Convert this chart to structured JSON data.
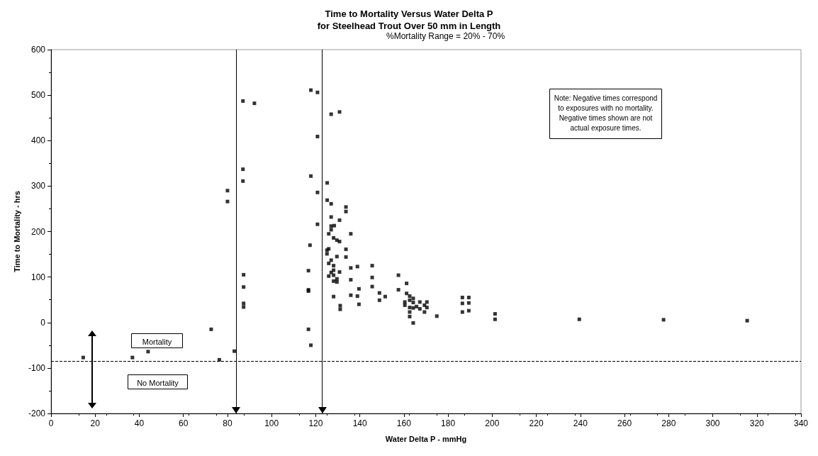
{
  "chart_data": {
    "type": "scatter",
    "title": "Time to Mortality Versus Water Delta P\nfor Steelhead Trout Over 50 mm in Length",
    "subtitle": "%Mortality Range = 20% - 70%",
    "xlabel": "Water Delta P - mmHg",
    "ylabel": "Time to Mortality - hrs",
    "x": [
      14.6,
      36.9,
      44,
      72.6,
      76.3,
      83.1,
      80,
      80,
      87,
      92.2,
      87,
      87,
      87.3,
      87.3,
      87.3,
      87.3,
      117.8,
      120.8,
      120.8,
      117.8,
      120.8,
      120.8,
      117.4,
      116.7,
      116.7,
      116.7,
      116.7,
      117.8,
      127,
      130.8,
      125.2,
      125.2,
      127,
      133.7,
      133.7,
      127,
      130.8,
      127,
      128.4,
      127,
      125.9,
      135.9,
      128.1,
      129.6,
      130.8,
      125.9,
      125.1,
      125.1,
      133.7,
      133.7,
      129.6,
      127,
      125.9,
      128.1,
      135.9,
      138.9,
      145.6,
      128.1,
      130.8,
      127,
      128.1,
      125.9,
      129.6,
      129.6,
      128.1,
      135.9,
      145.6,
      157.5,
      161.2,
      139.6,
      145.6,
      157.5,
      148.9,
      151.5,
      128.1,
      135.9,
      138.9,
      148.9,
      139.6,
      131.1,
      131.1,
      161.2,
      162.6,
      164.2,
      160.4,
      162.6,
      164.2,
      167.2,
      170.4,
      160.4,
      162.6,
      164.2,
      165.7,
      167.2,
      169.3,
      170.4,
      162.6,
      169.3,
      162.6,
      164.2,
      174.9,
      186.5,
      189.4,
      186.5,
      189.4,
      186.5,
      189.4,
      201.3,
      201.3,
      239.5,
      277.7,
      315.6
    ],
    "values": [
      -77,
      -77,
      -64,
      -15,
      -82,
      -63,
      290,
      266,
      487,
      482,
      337,
      311,
      105,
      78,
      42,
      34,
      511,
      506,
      409,
      322,
      286,
      216,
      170,
      114,
      72,
      69,
      -15,
      -50,
      458,
      463,
      307,
      269,
      261,
      254,
      244,
      232,
      225,
      212,
      213,
      204,
      195,
      195,
      186,
      181,
      178,
      162,
      159,
      151,
      161,
      144,
      145,
      137,
      130,
      125,
      120,
      123,
      125,
      115,
      111,
      110,
      104,
      102,
      96,
      89,
      91,
      94,
      99,
      104,
      86,
      74,
      79,
      72,
      65,
      57,
      57,
      60,
      58,
      49,
      40,
      37,
      29,
      64,
      58,
      53,
      45,
      49,
      44,
      45,
      45,
      38,
      33,
      32,
      35,
      30,
      38,
      33,
      23,
      23,
      13,
      -1,
      14,
      55,
      55,
      42,
      43,
      23,
      26,
      19,
      7,
      7,
      6,
      4
    ],
    "color": "#000000",
    "marker": "square",
    "xlim": [
      0,
      340
    ],
    "xticks": [
      0,
      20,
      40,
      60,
      80,
      100,
      120,
      140,
      160,
      180,
      200,
      220,
      240,
      260,
      280,
      300,
      320,
      340
    ],
    "ylim": [
      -200,
      600
    ],
    "yticks": [
      -200,
      -100,
      0,
      100,
      200,
      300,
      400,
      500,
      600
    ],
    "grid": false,
    "ref_lines": [
      {
        "axis": "y",
        "value": -85,
        "line_style": "dashed"
      },
      {
        "axis": "x",
        "value": 84
      },
      {
        "axis": "x",
        "value": 123
      }
    ],
    "annotations": [
      "Mortality",
      "No Mortality",
      "Note: Negative times correspond\nto exposures with no mortality.\nNegative times shown are not\nactual exposure times."
    ]
  }
}
